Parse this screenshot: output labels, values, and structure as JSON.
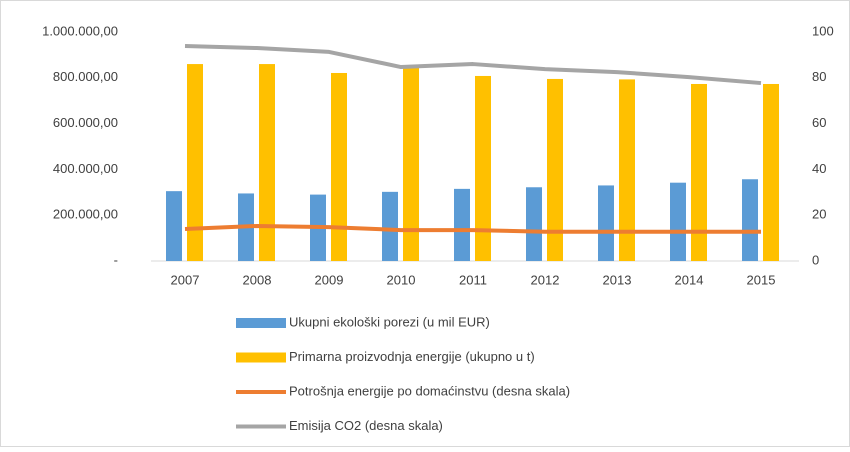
{
  "chart_data": {
    "type": "bar",
    "categories": [
      "2007",
      "2008",
      "2009",
      "2010",
      "2011",
      "2012",
      "2013",
      "2014",
      "2015"
    ],
    "series": [
      {
        "name": "Ukupni ekološki porezi (u mil EUR)",
        "type": "bar",
        "color": "#5b9bd5",
        "values": [
          305000,
          295000,
          290000,
          302000,
          315000,
          322000,
          330000,
          342000,
          357000
        ]
      },
      {
        "name": "Primarna proizvodnja energije (ukupno u t)",
        "type": "bar",
        "color": "#ffc000",
        "values": [
          860000,
          860000,
          821000,
          843000,
          808000,
          795000,
          793000,
          773000,
          773000
        ]
      },
      {
        "name": "Potrošnja energije po domaćinstvu (desna skala)",
        "type": "line",
        "axis": "y2",
        "color": "#ed7d31",
        "values": [
          14,
          15.3,
          14.8,
          13.5,
          13.5,
          12.8,
          12.8,
          12.8,
          12.8
        ]
      },
      {
        "name": "Emisija CO2 (desna skala)",
        "type": "line",
        "axis": "y2",
        "color": "#a5a5a5",
        "values": [
          93.9,
          93,
          91.3,
          84.7,
          86,
          83.8,
          82.5,
          80.3,
          77.7
        ]
      }
    ],
    "ylim": [
      0,
      1000000
    ],
    "yticks": [
      {
        "value": 0,
        "label": "-"
      },
      {
        "value": 200000,
        "label": "200.000,00"
      },
      {
        "value": 400000,
        "label": "400.000,00"
      },
      {
        "value": 600000,
        "label": "600.000,00"
      },
      {
        "value": 800000,
        "label": "800.000,00"
      },
      {
        "value": 1000000,
        "label": "1.000.000,00"
      }
    ],
    "y2lim": [
      0,
      100
    ],
    "y2ticks": [
      0,
      20,
      40,
      60,
      80,
      100
    ],
    "legend": "bottom",
    "grid": false
  }
}
